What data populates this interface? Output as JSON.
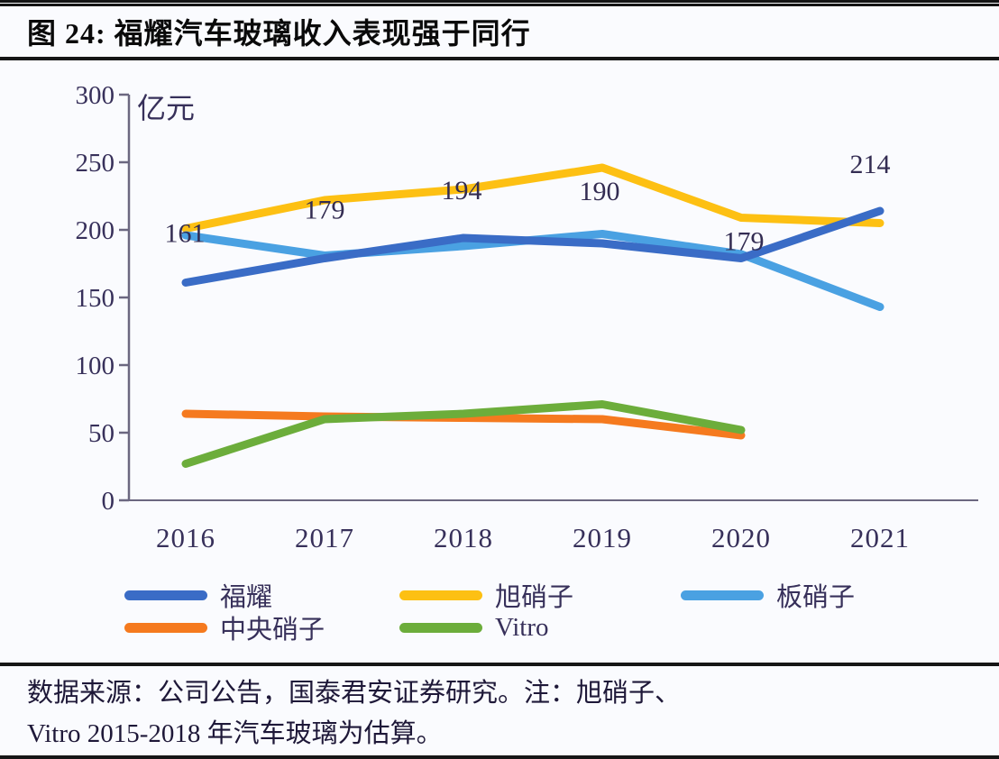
{
  "figure": {
    "title": "图 24:  福耀汽车玻璃收入表现强于同行",
    "source_note_line1": "数据来源：公司公告，国泰君安证券研究。注：旭硝子、",
    "source_note_line2": "Vitro 2015-2018 年汽车玻璃为估算。"
  },
  "chart_data": {
    "type": "line",
    "title": "福耀汽车玻璃收入表现强于同行",
    "unit_label": "亿元",
    "x": [
      "2016",
      "2017",
      "2018",
      "2019",
      "2020",
      "2021"
    ],
    "xlabel": "",
    "ylabel": "亿元",
    "ylim": [
      0,
      300
    ],
    "yticks": [
      0,
      50,
      100,
      150,
      200,
      250,
      300
    ],
    "grid": false,
    "legend_position": "bottom",
    "series": [
      {
        "id": "fuyao",
        "name": "福耀",
        "color": "#3a6cc6",
        "values": [
          161,
          179,
          194,
          190,
          179,
          214
        ],
        "labeled": true
      },
      {
        "id": "asahi",
        "name": "旭硝子",
        "color": "#fdc013",
        "values": [
          201,
          222,
          230,
          246,
          209,
          205
        ],
        "labeled": false
      },
      {
        "id": "nsg",
        "name": "板硝子",
        "color": "#4aa1e2",
        "values": [
          196,
          181,
          188,
          197,
          182,
          143
        ],
        "labeled": false
      },
      {
        "id": "central",
        "name": "中央硝子",
        "color": "#f57a1f",
        "values": [
          64,
          62,
          61,
          60,
          48
        ],
        "labeled": false
      },
      {
        "id": "vitro",
        "name": "Vitro",
        "color": "#6cad3b",
        "values": [
          27,
          60,
          64,
          71,
          52
        ],
        "labeled": false
      }
    ],
    "point_labels": {
      "series": "福耀",
      "values": [
        "161",
        "179",
        "194",
        "190",
        "179",
        "214"
      ]
    }
  },
  "style": {
    "axis_color": "#6b6780",
    "tick_text_color": "#37305a",
    "label_text_color": "#332c52"
  }
}
